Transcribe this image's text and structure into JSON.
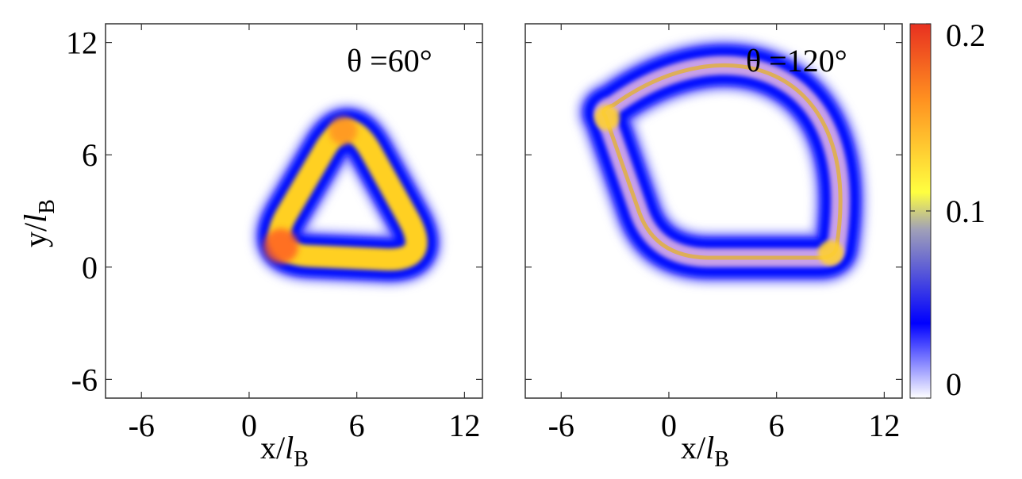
{
  "chart_data": [
    {
      "type": "heatmap",
      "panel_label": "θ =60°",
      "xlabel": "x/",
      "xlabel_italic": "l",
      "xlabel_sub": "B",
      "ylabel": "y/",
      "ylabel_italic": "l",
      "ylabel_sub": "B",
      "xlim": [
        -8,
        13
      ],
      "ylim": [
        -7,
        13
      ],
      "xticks": [
        -6,
        0,
        6,
        12
      ],
      "yticks": [
        -6,
        0,
        6,
        12
      ],
      "ring": {
        "shape": "rounded-triangle",
        "vertices": [
          [
            0.8,
            0.7
          ],
          [
            10.2,
            0.3
          ],
          [
            5.5,
            8.4
          ]
        ],
        "peak_density": 0.18,
        "mean_density": 0.13
      }
    },
    {
      "type": "heatmap",
      "panel_label": "θ =120°",
      "xlabel": "x/",
      "xlabel_italic": "l",
      "xlabel_sub": "B",
      "xlim": [
        -8,
        13
      ],
      "ylim": [
        -7,
        13
      ],
      "xticks": [
        -6,
        0,
        6,
        12
      ],
      "yticks": [
        -6,
        0,
        6,
        12
      ],
      "ring": {
        "shape": "lens",
        "start": [
          -3.8,
          8.4
        ],
        "corner": [
          -0.7,
          0.5
        ],
        "end": [
          9.2,
          0.5
        ],
        "peak_density": 0.14,
        "mean_density": 0.09
      }
    }
  ],
  "colorbar": {
    "min": 0,
    "max": 0.2,
    "ticks": [
      0,
      0.1,
      0.2
    ],
    "tick_labels": [
      "0",
      "0.1",
      "0.2"
    ],
    "colors": [
      "#ffffff",
      "#0000ff",
      "#a0a0b8",
      "#ffff40",
      "#ff9020",
      "#e83020"
    ]
  }
}
